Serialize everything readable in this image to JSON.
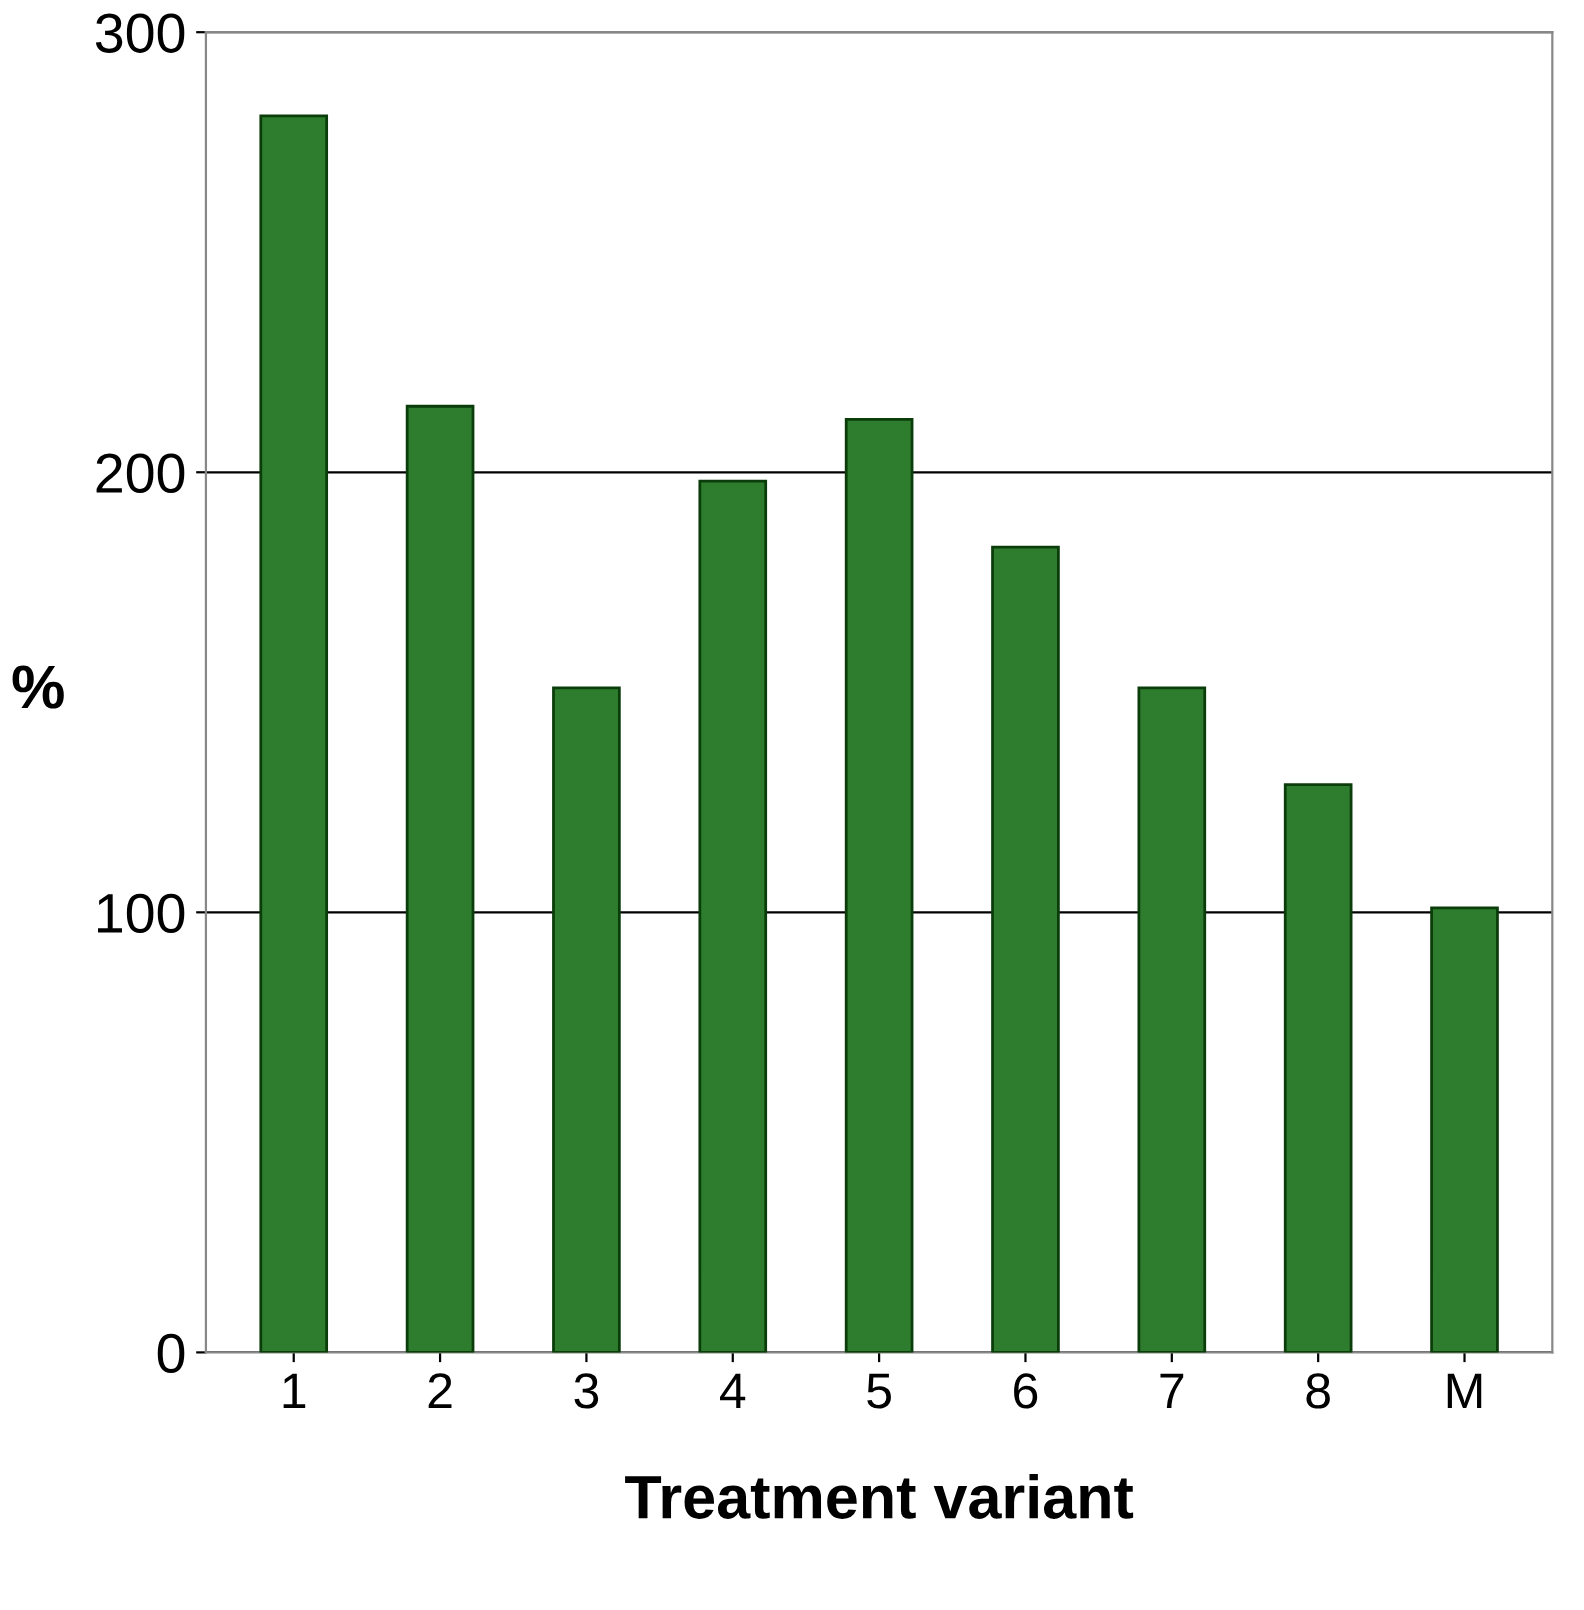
{
  "chart_data": {
    "type": "bar",
    "xlabel": "Treatment variant",
    "ylabel": "%",
    "categories": [
      "1",
      "2",
      "3",
      "4",
      "5",
      "6",
      "7",
      "8",
      "M"
    ],
    "values": [
      281,
      215,
      151,
      198,
      212,
      183,
      151,
      129,
      101
    ],
    "color": "#2e7d2e",
    "ylim": [
      0,
      300
    ],
    "yticks": [
      0,
      100,
      200,
      300
    ],
    "grid": "y",
    "legend": false
  }
}
